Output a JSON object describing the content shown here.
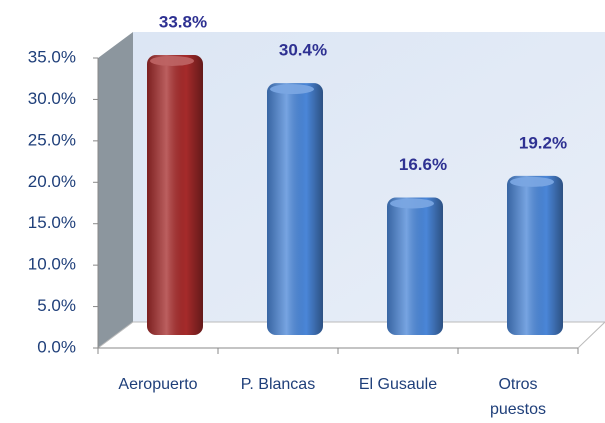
{
  "chart_data": {
    "type": "bar",
    "categories": [
      "Aeropuerto",
      "P. Blancas",
      "El Gusaule",
      "Otros puestos"
    ],
    "values": [
      33.8,
      30.4,
      16.6,
      19.2
    ],
    "value_labels": [
      "33.8%",
      "30.4%",
      "16.6%",
      "19.2%"
    ],
    "colors": [
      "#a52a2a",
      "#4a86d8",
      "#4a86d8",
      "#4a86d8"
    ],
    "ylim": [
      0,
      35
    ],
    "yticks": [
      {
        "value": 0,
        "label": "0.0%"
      },
      {
        "value": 5,
        "label": "5.0%"
      },
      {
        "value": 10,
        "label": "10.0%"
      },
      {
        "value": 15,
        "label": "15.0%"
      },
      {
        "value": 20,
        "label": "20.0%"
      },
      {
        "value": 25,
        "label": "25.0%"
      },
      {
        "value": 30,
        "label": "30.0%"
      },
      {
        "value": 35,
        "label": "35.0%"
      }
    ]
  }
}
